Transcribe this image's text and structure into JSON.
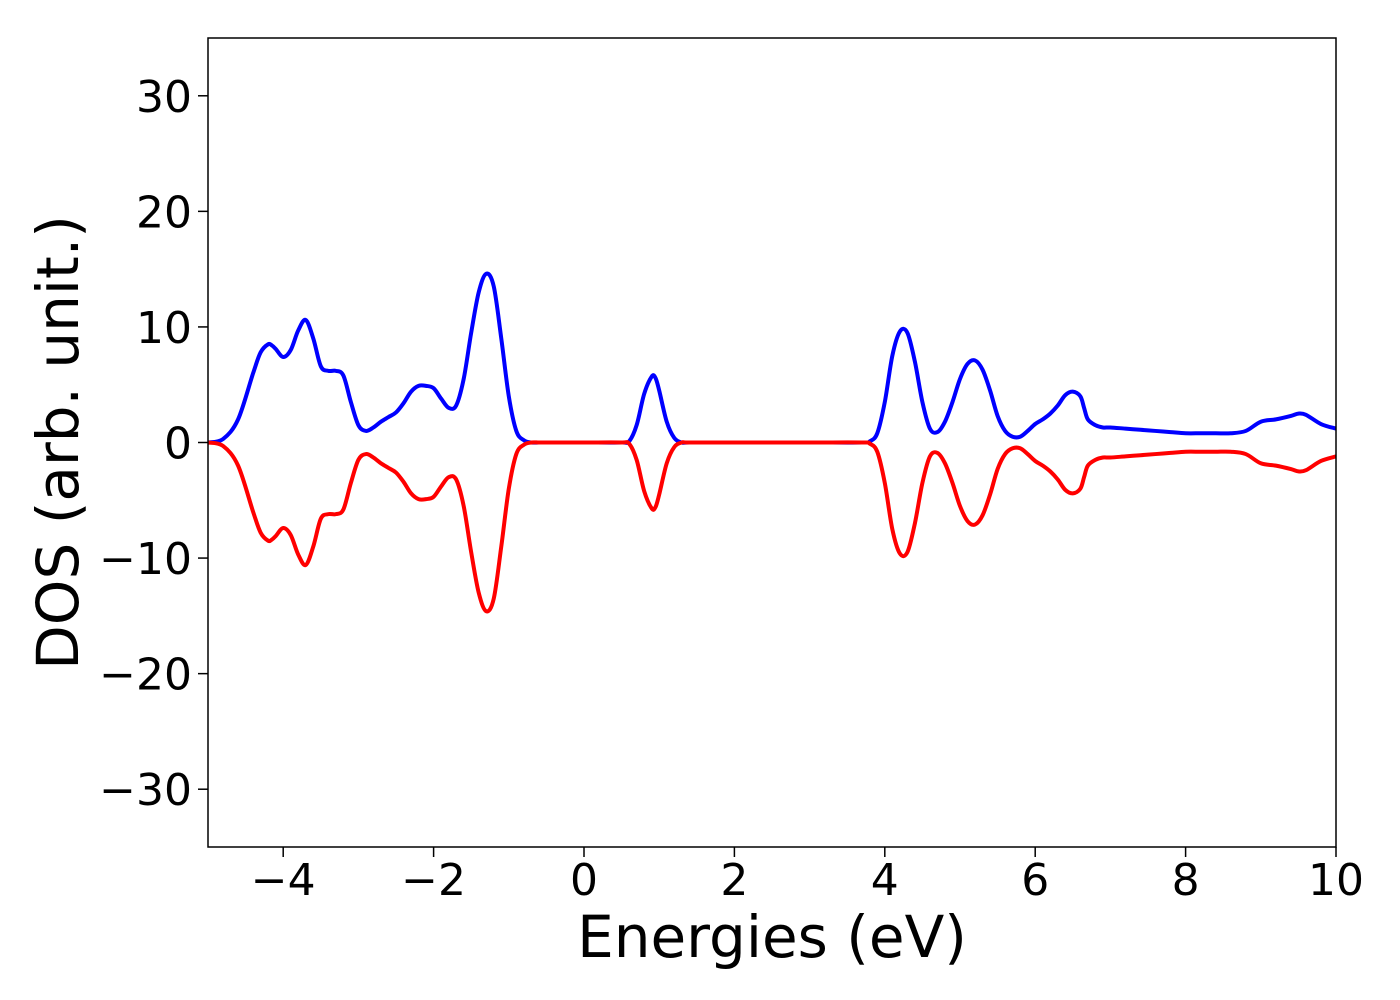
{
  "chart_data": {
    "type": "line",
    "title": "",
    "xlabel": "Energies (eV)",
    "ylabel": "DOS (arb. unit.)",
    "xlim": [
      -5,
      10
    ],
    "ylim": [
      -35,
      35
    ],
    "x_ticks": [
      -4,
      -2,
      0,
      2,
      4,
      6,
      8,
      10
    ],
    "x_tick_labels": [
      "−4",
      "−2",
      "0",
      "2",
      "4",
      "6",
      "8",
      "10"
    ],
    "y_ticks": [
      30,
      20,
      10,
      0,
      -10,
      -20,
      -30
    ],
    "y_tick_labels": [
      "30",
      "20",
      "10",
      "0",
      "−10",
      "−20",
      "−30"
    ],
    "grid": false,
    "legend": "none",
    "series": [
      {
        "color": "#0000ff",
        "x": [
          -5.0,
          -4.8,
          -4.6,
          -4.4,
          -4.3,
          -4.2,
          -4.15,
          -4.1,
          -4.0,
          -3.9,
          -3.8,
          -3.7,
          -3.6,
          -3.5,
          -3.4,
          -3.3,
          -3.2,
          -3.1,
          -3.0,
          -2.9,
          -2.8,
          -2.7,
          -2.6,
          -2.5,
          -2.4,
          -2.3,
          -2.2,
          -2.1,
          -2.0,
          -1.9,
          -1.8,
          -1.7,
          -1.6,
          -1.5,
          -1.4,
          -1.3,
          -1.2,
          -1.1,
          -1.0,
          -0.9,
          -0.8,
          -0.7,
          -0.6,
          -0.5,
          0.0,
          0.5,
          0.6,
          0.7,
          0.8,
          0.9,
          0.95,
          1.0,
          1.1,
          1.2,
          1.3,
          1.4,
          2.0,
          3.0,
          3.7,
          3.8,
          3.9,
          4.0,
          4.1,
          4.2,
          4.3,
          4.4,
          4.5,
          4.6,
          4.7,
          4.8,
          4.9,
          5.0,
          5.1,
          5.2,
          5.3,
          5.4,
          5.5,
          5.6,
          5.7,
          5.8,
          5.9,
          6.0,
          6.1,
          6.2,
          6.3,
          6.4,
          6.5,
          6.6,
          6.65,
          6.7,
          6.8,
          6.9,
          7.0,
          7.2,
          7.4,
          7.6,
          7.8,
          8.0,
          8.2,
          8.4,
          8.6,
          8.8,
          9.0,
          9.2,
          9.4,
          9.5,
          9.6,
          9.8,
          10.0
        ],
        "y": [
          0.0,
          0.3,
          2.0,
          6.0,
          7.8,
          8.5,
          8.4,
          8.1,
          7.4,
          8.0,
          9.7,
          10.6,
          9.0,
          6.6,
          6.2,
          6.2,
          5.8,
          3.5,
          1.5,
          1.0,
          1.3,
          1.8,
          2.2,
          2.6,
          3.4,
          4.4,
          4.9,
          4.9,
          4.7,
          3.8,
          3.0,
          3.2,
          5.5,
          9.5,
          13.0,
          14.6,
          13.5,
          9.0,
          4.0,
          1.0,
          0.2,
          0.0,
          0.0,
          0.0,
          0.0,
          0.0,
          0.1,
          1.5,
          4.2,
          5.7,
          5.6,
          4.5,
          1.8,
          0.4,
          0.0,
          0.0,
          0.0,
          0.0,
          0.0,
          0.1,
          0.8,
          3.5,
          7.5,
          9.6,
          9.5,
          7.0,
          3.5,
          1.2,
          0.9,
          1.8,
          3.5,
          5.5,
          6.8,
          7.1,
          6.3,
          4.5,
          2.3,
          1.0,
          0.5,
          0.5,
          1.0,
          1.6,
          2.0,
          2.5,
          3.2,
          4.1,
          4.4,
          4.0,
          3.0,
          2.0,
          1.5,
          1.3,
          1.3,
          1.2,
          1.1,
          1.0,
          0.9,
          0.8,
          0.8,
          0.8,
          0.8,
          1.0,
          1.8,
          2.0,
          2.3,
          2.5,
          2.4,
          1.6,
          1.2
        ]
      },
      {
        "color": "#ff0000",
        "x": [
          -5.0,
          -4.8,
          -4.6,
          -4.4,
          -4.3,
          -4.2,
          -4.15,
          -4.1,
          -4.0,
          -3.9,
          -3.8,
          -3.7,
          -3.6,
          -3.5,
          -3.4,
          -3.3,
          -3.2,
          -3.1,
          -3.0,
          -2.9,
          -2.8,
          -2.7,
          -2.6,
          -2.5,
          -2.4,
          -2.3,
          -2.2,
          -2.1,
          -2.0,
          -1.9,
          -1.8,
          -1.7,
          -1.6,
          -1.5,
          -1.4,
          -1.3,
          -1.2,
          -1.1,
          -1.0,
          -0.9,
          -0.8,
          -0.7,
          -0.6,
          -0.5,
          0.0,
          0.5,
          0.6,
          0.7,
          0.8,
          0.9,
          0.95,
          1.0,
          1.1,
          1.2,
          1.3,
          1.4,
          2.0,
          3.0,
          3.7,
          3.8,
          3.9,
          4.0,
          4.1,
          4.2,
          4.3,
          4.4,
          4.5,
          4.6,
          4.7,
          4.8,
          4.9,
          5.0,
          5.1,
          5.2,
          5.3,
          5.4,
          5.5,
          5.6,
          5.7,
          5.8,
          5.9,
          6.0,
          6.1,
          6.2,
          6.3,
          6.4,
          6.5,
          6.6,
          6.65,
          6.7,
          6.8,
          6.9,
          7.0,
          7.2,
          7.4,
          7.6,
          7.8,
          8.0,
          8.2,
          8.4,
          8.6,
          8.8,
          9.0,
          9.2,
          9.4,
          9.5,
          9.6,
          9.8,
          10.0
        ],
        "y": [
          0.0,
          -0.3,
          -2.0,
          -6.0,
          -7.8,
          -8.5,
          -8.4,
          -8.1,
          -7.4,
          -8.0,
          -9.7,
          -10.6,
          -9.0,
          -6.6,
          -6.2,
          -6.2,
          -5.8,
          -3.5,
          -1.5,
          -1.0,
          -1.3,
          -1.8,
          -2.2,
          -2.6,
          -3.4,
          -4.4,
          -4.9,
          -4.9,
          -4.7,
          -3.8,
          -3.0,
          -3.2,
          -5.5,
          -9.5,
          -13.0,
          -14.6,
          -13.5,
          -9.0,
          -4.0,
          -1.0,
          -0.2,
          0.0,
          0.0,
          0.0,
          0.0,
          0.0,
          -0.1,
          -1.5,
          -4.2,
          -5.7,
          -5.6,
          -4.5,
          -1.8,
          -0.4,
          0.0,
          0.0,
          0.0,
          0.0,
          0.0,
          -0.1,
          -0.8,
          -3.5,
          -7.5,
          -9.6,
          -9.5,
          -7.0,
          -3.5,
          -1.2,
          -0.9,
          -1.8,
          -3.5,
          -5.5,
          -6.8,
          -7.1,
          -6.3,
          -4.5,
          -2.3,
          -1.0,
          -0.5,
          -0.5,
          -1.0,
          -1.6,
          -2.0,
          -2.5,
          -3.2,
          -4.1,
          -4.4,
          -4.0,
          -3.0,
          -2.0,
          -1.5,
          -1.3,
          -1.3,
          -1.2,
          -1.1,
          -1.0,
          -0.9,
          -0.8,
          -0.8,
          -0.8,
          -0.8,
          -1.0,
          -1.8,
          -2.0,
          -2.3,
          -2.5,
          -2.4,
          -1.6,
          -1.2
        ]
      }
    ]
  }
}
